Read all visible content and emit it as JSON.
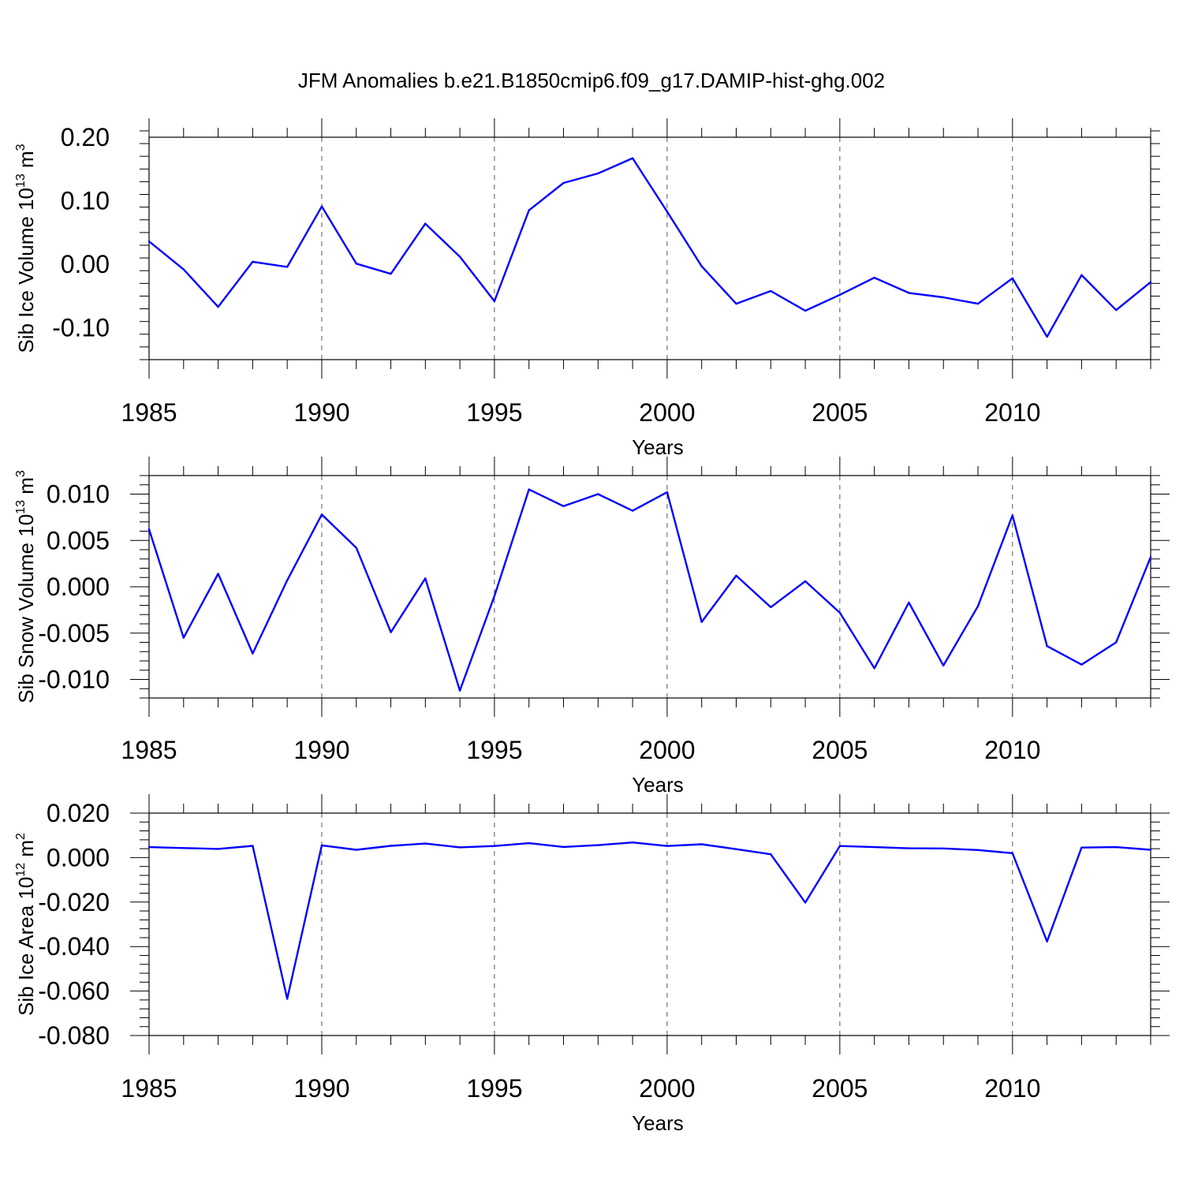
{
  "title": "JFM Anomalies b.e21.B1850cmip6.f09_g17.DAMIP-hist-ghg.002",
  "colors": {
    "line": "#0000ff",
    "axis": "#000000",
    "grid": "#555555"
  },
  "chart_data": [
    {
      "type": "line",
      "title": "JFM Anomalies b.e21.B1850cmip6.f09_g17.DAMIP-hist-ghg.002",
      "xlabel": "Years",
      "ylabel_base": "Sib Ice Volume 10",
      "ylabel_exp": "13",
      "ylabel_unit": " m",
      "ylabel_unit_exp": "3",
      "xlim": [
        1985,
        2014
      ],
      "ylim": [
        -0.15,
        0.2
      ],
      "xticks": [
        1985,
        1990,
        1995,
        2000,
        2005,
        2010
      ],
      "xtick_labels": [
        "1985",
        "1990",
        "1995",
        "2000",
        "2005",
        "2010"
      ],
      "yticks": [
        0.2,
        0.1,
        0.0,
        -0.1
      ],
      "ytick_labels": [
        "0.20",
        "0.10",
        "0.00",
        "-0.10"
      ],
      "grid": "vertical-dashed-at-major-x",
      "series": [
        {
          "name": "Sib Ice Volume",
          "x": [
            1985,
            1986,
            1987,
            1988,
            1989,
            1990,
            1991,
            1992,
            1993,
            1994,
            1995,
            1996,
            1997,
            1998,
            1999,
            2000,
            2001,
            2002,
            2003,
            2004,
            2005,
            2006,
            2007,
            2008,
            2009,
            2010,
            2011,
            2012,
            2013,
            2014
          ],
          "values": [
            0.036,
            -0.008,
            -0.067,
            0.004,
            -0.004,
            0.091,
            0.001,
            -0.015,
            0.064,
            0.012,
            -0.058,
            0.085,
            0.128,
            0.143,
            0.167,
            0.083,
            -0.003,
            -0.062,
            -0.042,
            -0.073,
            -0.048,
            -0.021,
            -0.045,
            -0.052,
            -0.062,
            -0.022,
            -0.114,
            -0.017,
            -0.072,
            -0.028
          ]
        }
      ]
    },
    {
      "type": "line",
      "xlabel": "Years",
      "ylabel_base": "Sib Snow Volume 10",
      "ylabel_exp": "13",
      "ylabel_unit": " m",
      "ylabel_unit_exp": "3",
      "xlim": [
        1985,
        2014
      ],
      "ylim": [
        -0.012,
        0.012
      ],
      "xticks": [
        1985,
        1990,
        1995,
        2000,
        2005,
        2010
      ],
      "xtick_labels": [
        "1985",
        "1990",
        "1995",
        "2000",
        "2005",
        "2010"
      ],
      "yticks": [
        0.01,
        0.005,
        0.0,
        -0.005,
        -0.01
      ],
      "ytick_labels": [
        "0.010",
        "0.005",
        "0.000",
        "-0.005",
        "-0.010"
      ],
      "grid": "vertical-dashed-at-major-x",
      "series": [
        {
          "name": "Sib Snow Volume",
          "x": [
            1985,
            1986,
            1987,
            1988,
            1989,
            1990,
            1991,
            1992,
            1993,
            1994,
            1995,
            1996,
            1997,
            1998,
            1999,
            2000,
            2001,
            2002,
            2003,
            2004,
            2005,
            2006,
            2007,
            2008,
            2009,
            2010,
            2011,
            2012,
            2013,
            2014
          ],
          "values": [
            0.0062,
            -0.0055,
            0.0014,
            -0.0072,
            0.0007,
            0.0078,
            0.0042,
            -0.0049,
            0.0009,
            -0.0112,
            -0.001,
            0.0105,
            0.0087,
            0.01,
            0.0082,
            0.0102,
            -0.0038,
            0.0012,
            -0.0022,
            0.0006,
            -0.0028,
            -0.0088,
            -0.0017,
            -0.0085,
            -0.0021,
            0.0077,
            -0.0064,
            -0.0084,
            -0.006,
            0.0032
          ]
        }
      ]
    },
    {
      "type": "line",
      "xlabel": "Years",
      "ylabel_base": "Sib Ice Area 10",
      "ylabel_exp": "12",
      "ylabel_unit": " m",
      "ylabel_unit_exp": "2",
      "xlim": [
        1985,
        2014
      ],
      "ylim": [
        -0.08,
        0.02
      ],
      "xticks": [
        1985,
        1990,
        1995,
        2000,
        2005,
        2010
      ],
      "xtick_labels": [
        "1985",
        "1990",
        "1995",
        "2000",
        "2005",
        "2010"
      ],
      "yticks": [
        0.02,
        0.0,
        -0.02,
        -0.04,
        -0.06,
        -0.08
      ],
      "ytick_labels": [
        "0.020",
        "0.000",
        "-0.020",
        "-0.040",
        "-0.060",
        "-0.080"
      ],
      "grid": "vertical-dashed-at-major-x",
      "series": [
        {
          "name": "Sib Ice Area",
          "x": [
            1985,
            1986,
            1987,
            1988,
            1989,
            1990,
            1991,
            1992,
            1993,
            1994,
            1995,
            1996,
            1997,
            1998,
            1999,
            2000,
            2001,
            2002,
            2003,
            2004,
            2005,
            2006,
            2007,
            2008,
            2009,
            2010,
            2011,
            2012,
            2013,
            2014
          ],
          "values": [
            0.0047,
            0.0043,
            0.0039,
            0.0053,
            -0.0635,
            0.0055,
            0.0035,
            0.0053,
            0.0063,
            0.0046,
            0.0052,
            0.0065,
            0.0048,
            0.0056,
            0.0068,
            0.0052,
            0.006,
            0.0038,
            0.0015,
            -0.0202,
            0.0052,
            0.0047,
            0.0042,
            0.0041,
            0.0034,
            0.002,
            -0.0377,
            0.0045,
            0.0047,
            0.0035
          ]
        }
      ]
    }
  ]
}
